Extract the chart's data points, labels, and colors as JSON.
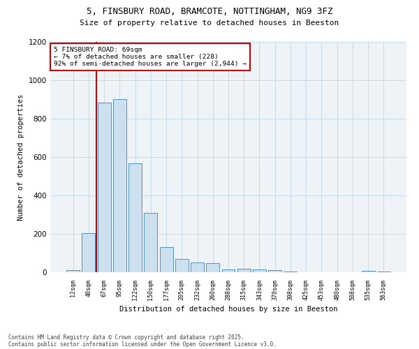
{
  "title_line1": "5, FINSBURY ROAD, BRAMCOTE, NOTTINGHAM, NG9 3FZ",
  "title_line2": "Size of property relative to detached houses in Beeston",
  "xlabel": "Distribution of detached houses by size in Beeston",
  "ylabel": "Number of detached properties",
  "categories": [
    "12sqm",
    "40sqm",
    "67sqm",
    "95sqm",
    "122sqm",
    "150sqm",
    "177sqm",
    "205sqm",
    "232sqm",
    "260sqm",
    "288sqm",
    "315sqm",
    "343sqm",
    "370sqm",
    "398sqm",
    "425sqm",
    "453sqm",
    "480sqm",
    "508sqm",
    "535sqm",
    "563sqm"
  ],
  "values": [
    10,
    205,
    885,
    900,
    568,
    308,
    132,
    70,
    50,
    47,
    15,
    18,
    13,
    10,
    4,
    0,
    0,
    0,
    0,
    8,
    5
  ],
  "bar_color": "#cce0f0",
  "bar_edge_color": "#5590c0",
  "vline_x": 2.0,
  "vline_color": "#cc0000",
  "annotation_text": "5 FINSBURY ROAD: 69sqm\n← 7% of detached houses are smaller (228)\n92% of semi-detached houses are larger (2,944) →",
  "annotation_box_color": "#ffffff",
  "annotation_box_edge": "#cc0000",
  "ylim": [
    0,
    1200
  ],
  "yticks": [
    0,
    200,
    400,
    600,
    800,
    1000,
    1200
  ],
  "footer_line1": "Contains HM Land Registry data © Crown copyright and database right 2025.",
  "footer_line2": "Contains public sector information licensed under the Open Government Licence v3.0.",
  "bg_color": "#ffffff",
  "plot_bg_color": "#eef3f8"
}
